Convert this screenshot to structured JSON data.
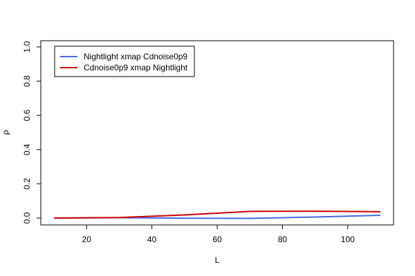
{
  "chart_data": {
    "type": "line",
    "title": "",
    "xlabel": "L",
    "ylabel": "ρ",
    "xlim": [
      10,
      110
    ],
    "ylim": [
      0,
      1
    ],
    "xticks": [
      20,
      40,
      60,
      80,
      100
    ],
    "xtick_labels": [
      "20",
      "40",
      "60",
      "80",
      "100"
    ],
    "yticks": [
      0,
      0.2,
      0.4,
      0.6,
      0.8,
      1.0
    ],
    "ytick_labels": [
      "0.0",
      "0.2",
      "0.4",
      "0.6",
      "0.8",
      "1.0"
    ],
    "x": [
      10,
      30,
      50,
      70,
      90,
      110
    ],
    "series": [
      {
        "name": "Nightlight xmap Cdnoise0p9",
        "color": "#4169E1",
        "values": [
          0.0,
          0.002,
          -0.001,
          -0.002,
          0.006,
          0.016
        ]
      },
      {
        "name": "Cdnoise0p9 xmap Nightlight",
        "color": "#CC0000",
        "values": [
          0.0,
          0.003,
          0.018,
          0.039,
          0.04,
          0.037
        ]
      }
    ],
    "legend_position": "top-left",
    "grid": false
  }
}
